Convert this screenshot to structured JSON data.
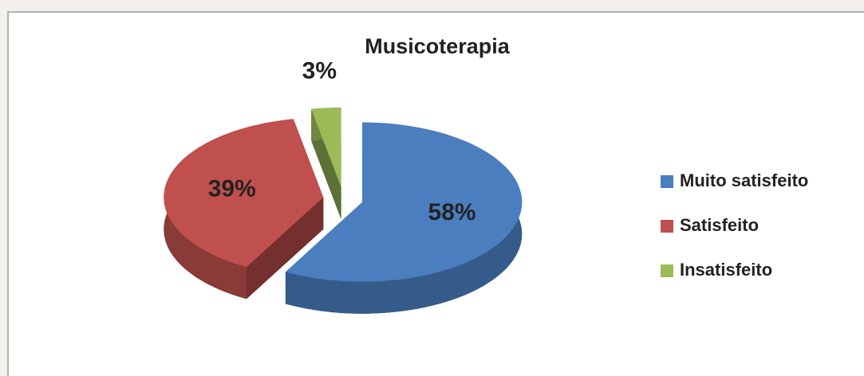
{
  "chart_data": {
    "type": "pie",
    "title": "Musicoterapia",
    "categories": [
      "Muito satisfeito",
      "Satisfeito",
      "Insatisfeito"
    ],
    "values": [
      58,
      39,
      3
    ],
    "value_labels": [
      "58%",
      "39%",
      "3%"
    ],
    "colors": [
      "#4a7ebf",
      "#c0504d",
      "#9bbb59"
    ],
    "legend": "right"
  }
}
